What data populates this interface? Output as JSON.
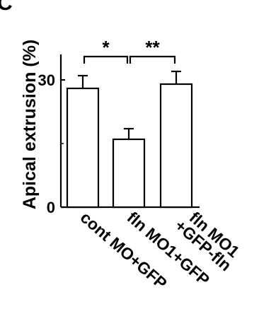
{
  "panel_label": "C",
  "chart_data": {
    "type": "bar",
    "categories": [
      "cont MO+GFP",
      "fln MO1+GFP",
      "fln MO1\n+GFP-fln"
    ],
    "values": [
      28.0,
      16.0,
      29.0
    ],
    "errors": [
      3.0,
      2.5,
      3.0
    ],
    "ylabel": "Apical extrusion (%)",
    "xlabel": "",
    "ylim": [
      0,
      36
    ],
    "yticks": [
      0,
      30
    ],
    "grid": false,
    "legend": null,
    "significance": [
      {
        "from": 0,
        "to": 1,
        "label": "*"
      },
      {
        "from": 1,
        "to": 2,
        "label": "**"
      }
    ]
  }
}
